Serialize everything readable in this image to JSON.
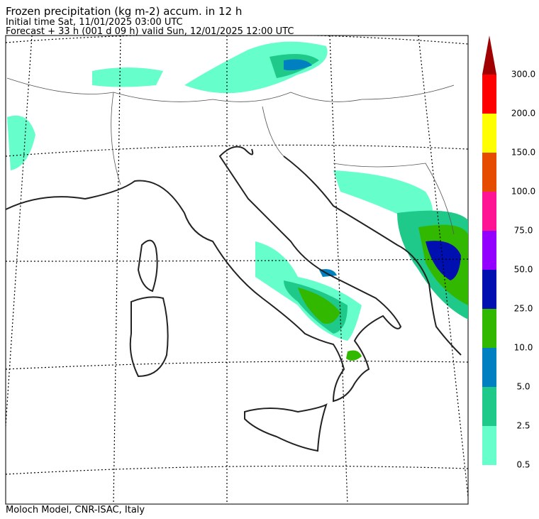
{
  "header": {
    "title": "Frozen precipitation (kg m-2) accum. in 12 h",
    "initial_time": "Initial time  Sat, 11/01/2025  03:00 UTC",
    "forecast": "Forecast  +  33 h  (001 d 09 h)  valid Sun, 12/01/2025 12:00 UTC"
  },
  "colorbar": {
    "levels": [
      {
        "value": 0.5,
        "label": "0.5"
      },
      {
        "value": 2.5,
        "label": "2.5"
      },
      {
        "value": 5,
        "label": "5.0"
      },
      {
        "value": 10,
        "label": "10.0"
      },
      {
        "value": 25,
        "label": "25.0"
      },
      {
        "value": 50,
        "label": "50.0"
      },
      {
        "value": 75,
        "label": "75.0"
      },
      {
        "value": 100,
        "label": "100.0"
      },
      {
        "value": 150,
        "label": "150.0"
      },
      {
        "value": 200,
        "label": "200.0"
      },
      {
        "value": 300,
        "label": "300.0"
      }
    ],
    "colors": [
      "#66ffcc",
      "#1ec98a",
      "#0080c0",
      "#33b800",
      "#0010b0",
      "#9400ff",
      "#ff1493",
      "#e64c00",
      "#ffff00",
      "#ff0000"
    ],
    "extend_color": "#a00000"
  },
  "footer": "Moloch Model, CNR-ISAC, Italy"
}
